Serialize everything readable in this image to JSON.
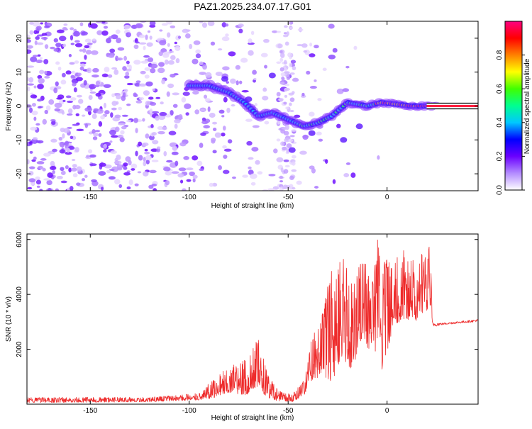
{
  "title": "PAZ1.2025.234.07.17.G01",
  "colors": {
    "snr_line": "#ee2b2b",
    "axis": "#000000",
    "ridge_low": "#9b59ff",
    "ridge_mid": "#00e5ff",
    "ridge_high": "#ff2040",
    "track_line": "#000000"
  },
  "chart_data": [
    {
      "id": "spectrogram",
      "type": "heatmap",
      "title": "PAZ1.2025.234.07.17.G01",
      "xlabel": "Height of straight line (km)",
      "ylabel": "Frequency (Hz)",
      "xlim": [
        -182,
        46
      ],
      "ylim": [
        -25,
        25
      ],
      "x_ticks": [
        -150,
        -100,
        -50,
        0
      ],
      "y_ticks": [
        -20,
        -10,
        0,
        10,
        20
      ],
      "ridge_track": [
        {
          "x": -100,
          "y": 6
        },
        {
          "x": -90,
          "y": 6
        },
        {
          "x": -80,
          "y": 4
        },
        {
          "x": -72,
          "y": 1
        },
        {
          "x": -65,
          "y": -3
        },
        {
          "x": -58,
          "y": -2
        },
        {
          "x": -50,
          "y": -4
        },
        {
          "x": -42,
          "y": -6
        },
        {
          "x": -35,
          "y": -5
        },
        {
          "x": -28,
          "y": -3
        },
        {
          "x": -20,
          "y": 1
        },
        {
          "x": -10,
          "y": 0
        },
        {
          "x": -3,
          "y": 1
        },
        {
          "x": 5,
          "y": 0.5
        },
        {
          "x": 12,
          "y": 0
        },
        {
          "x": 20,
          "y": 0
        },
        {
          "x": 30,
          "y": 0
        }
      ],
      "track_line_y": 0
    },
    {
      "id": "colorbar",
      "type": "colorbar",
      "label": "Normalized spectral amplitude",
      "range": [
        0,
        1
      ],
      "ticks": [
        "0.0",
        "0.2",
        "0.4",
        "0.6",
        "0.8"
      ],
      "stops": [
        "#ffffff",
        "#b38bff",
        "#6a00ff",
        "#0000ff",
        "#00c8ff",
        "#00ff90",
        "#40ff00",
        "#ffff00",
        "#ff8000",
        "#ff0000",
        "#ff0080"
      ]
    },
    {
      "id": "snr",
      "type": "line",
      "xlabel": "Height of straight line (km)",
      "ylabel": "SNR (10 * v/v)",
      "xlim": [
        -182,
        46
      ],
      "ylim": [
        0,
        6200
      ],
      "x_ticks": [
        -150,
        -100,
        -50,
        0
      ],
      "y_ticks": [
        2000,
        4000,
        6000
      ],
      "envelope": {
        "x": [
          -182,
          -120,
          -95,
          -88,
          -80,
          -72,
          -65,
          -60,
          -55,
          -48,
          -42,
          -38,
          -33,
          -28,
          -22,
          -18,
          -12,
          -8,
          -5,
          -2,
          3,
          8,
          15,
          22,
          23,
          28,
          46
        ],
        "low": [
          50,
          80,
          150,
          200,
          400,
          300,
          500,
          200,
          100,
          80,
          300,
          800,
          1000,
          700,
          1500,
          1000,
          2500,
          1500,
          2000,
          1000,
          2800,
          3000,
          3000,
          3500,
          2600,
          2800,
          2900
        ],
        "high": [
          250,
          250,
          400,
          900,
          1400,
          1600,
          2400,
          1100,
          500,
          350,
          900,
          2500,
          3500,
          5000,
          5400,
          4600,
          6000,
          4000,
          6200,
          5400,
          5200,
          5700,
          5300,
          5800,
          3200,
          3050,
          3200
        ]
      }
    }
  ]
}
